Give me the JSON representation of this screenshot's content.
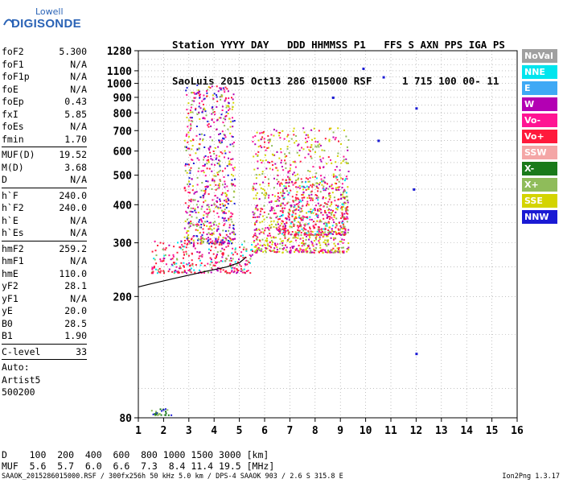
{
  "logo": {
    "line1": "Lowell",
    "line2": "DIGISONDE"
  },
  "header": {
    "line1": "Station YYYY DAY   DDD HHMMSS P1   FFS S AXN PPS IGA PS",
    "line2": "SaoLuis 2015 Oct13 286 015000 RSF     1 715 100 00- 11"
  },
  "params": {
    "group1": [
      {
        "name": "foF2",
        "value": "5.300"
      },
      {
        "name": "foF1",
        "value": "N/A"
      },
      {
        "name": "foF1p",
        "value": "N/A"
      },
      {
        "name": "foE",
        "value": "N/A"
      },
      {
        "name": "foEp",
        "value": "0.43"
      },
      {
        "name": "fxI",
        "value": "5.85"
      },
      {
        "name": "foEs",
        "value": "N/A"
      },
      {
        "name": "fmin",
        "value": "1.70"
      }
    ],
    "group2": [
      {
        "name": "MUF(D)",
        "value": "19.52"
      },
      {
        "name": "M(D)",
        "value": "3.68"
      },
      {
        "name": "D",
        "value": "N/A"
      }
    ],
    "group3": [
      {
        "name": "h`F",
        "value": "240.0"
      },
      {
        "name": "h`F2",
        "value": "240.0"
      },
      {
        "name": "h`E",
        "value": "N/A"
      },
      {
        "name": "h`Es",
        "value": "N/A"
      }
    ],
    "group4": [
      {
        "name": "hmF2",
        "value": "259.2"
      },
      {
        "name": "hmF1",
        "value": "N/A"
      },
      {
        "name": "hmE",
        "value": "110.0"
      },
      {
        "name": "yF2",
        "value": "28.1"
      },
      {
        "name": "yF1",
        "value": "N/A"
      },
      {
        "name": "yE",
        "value": "20.0"
      },
      {
        "name": "B0",
        "value": "28.5"
      },
      {
        "name": "B1",
        "value": "1.90"
      }
    ],
    "clevel": {
      "name": "C-level",
      "value": "33"
    },
    "auto": [
      "Auto:",
      "Artist5",
      "500200"
    ]
  },
  "legend": [
    {
      "label": "NoVal",
      "color": "#a0a0a0"
    },
    {
      "label": "NNE",
      "color": "#00e5ee"
    },
    {
      "label": "E",
      "color": "#3fa9f5"
    },
    {
      "label": "W",
      "color": "#b300b3"
    },
    {
      "label": "Vo-",
      "color": "#ff1493"
    },
    {
      "label": "Vo+",
      "color": "#ff1a3c"
    },
    {
      "label": "SSW",
      "color": "#f4a6a6"
    },
    {
      "label": "X-",
      "color": "#1a7a1a"
    },
    {
      "label": "X+",
      "color": "#8fbc5a"
    },
    {
      "label": "SSE",
      "color": "#d4d400"
    },
    {
      "label": "NNW",
      "color": "#1a1ad4"
    }
  ],
  "chart_data": {
    "type": "scatter",
    "xlabel": "",
    "ylabel": "",
    "xlim": [
      1,
      16
    ],
    "ylim": [
      80,
      1280
    ],
    "y_scale": "log",
    "xticks": [
      1,
      2,
      3,
      4,
      5,
      6,
      7,
      8,
      9,
      10,
      11,
      12,
      13,
      14,
      15,
      16
    ],
    "yticks": [
      80,
      200,
      300,
      400,
      500,
      600,
      700,
      800,
      900,
      1000,
      1100,
      1280
    ],
    "grid": true,
    "trace": {
      "x": [
        1.0,
        1.5,
        2.0,
        2.5,
        3.0,
        3.5,
        4.0,
        4.5,
        4.8,
        5.0,
        5.1,
        5.2,
        5.25
      ],
      "y": [
        215,
        220,
        225,
        230,
        235,
        240,
        245,
        250,
        255,
        258,
        262,
        266,
        270
      ]
    },
    "echo_regions": [
      {
        "x": [
          1.5,
          5.5
        ],
        "y": [
          240,
          310
        ],
        "dominant": "Vo+"
      },
      {
        "x": [
          2.8,
          4.8
        ],
        "y": [
          300,
          1000
        ],
        "dominant": "Vo-"
      },
      {
        "x": [
          5.5,
          9.3
        ],
        "y": [
          280,
          720
        ],
        "dominant": "SSE"
      },
      {
        "x": [
          6.5,
          9.3
        ],
        "y": [
          320,
          500
        ],
        "dominant": "Vo+"
      },
      {
        "x": [
          1.5,
          2.3
        ],
        "y": [
          82,
          86
        ],
        "dominant": "X-"
      }
    ],
    "isolated_points": [
      {
        "x": 9.9,
        "y": 1120
      },
      {
        "x": 10.7,
        "y": 1050
      },
      {
        "x": 8.7,
        "y": 900
      },
      {
        "x": 10.5,
        "y": 650
      },
      {
        "x": 11.9,
        "y": 450
      },
      {
        "x": 12.0,
        "y": 830
      },
      {
        "x": 12.0,
        "y": 130
      }
    ]
  },
  "footer": {
    "d_row": "D    100  200  400  600  800 1000 1500 3000 [km]",
    "muf_row": "MUF  5.6  5.7  6.0  6.6  7.3  8.4 11.4 19.5 [MHz]"
  },
  "bottom_line": "SAAOK_2015286015000.RSF / 300fx256h 50 kHz 5.0 km / DPS-4 SAAOK 903 / 2.6 S 315.8 E",
  "version": "Ion2Png 1.3.17"
}
